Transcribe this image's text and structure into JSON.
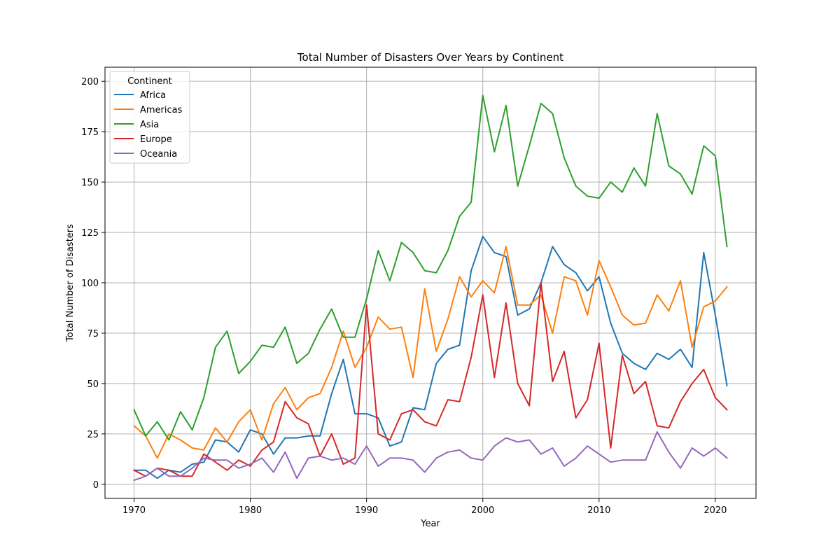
{
  "chart_data": {
    "type": "line",
    "title": "Total Number of Disasters Over Years by Continent",
    "xlabel": "Year",
    "ylabel": "Total Number of Disasters",
    "xlim": [
      1967.5,
      2023.5
    ],
    "ylim": [
      -7,
      207
    ],
    "xticks": [
      1970,
      1980,
      1990,
      2000,
      2010,
      2020
    ],
    "yticks": [
      0,
      25,
      50,
      75,
      100,
      125,
      150,
      175,
      200
    ],
    "grid": true,
    "legend": {
      "title": "Continent",
      "placement": "top-left"
    },
    "colors": {
      "Africa": "#1f77b4",
      "Americas": "#ff7f0e",
      "Asia": "#2ca02c",
      "Europe": "#d62728",
      "Oceania": "#9467bd"
    },
    "x": [
      1970,
      1971,
      1972,
      1973,
      1974,
      1975,
      1976,
      1977,
      1978,
      1979,
      1980,
      1981,
      1982,
      1983,
      1984,
      1985,
      1986,
      1987,
      1988,
      1989,
      1990,
      1991,
      1992,
      1993,
      1994,
      1995,
      1996,
      1997,
      1998,
      1999,
      2000,
      2001,
      2002,
      2003,
      2004,
      2005,
      2006,
      2007,
      2008,
      2009,
      2010,
      2011,
      2012,
      2013,
      2014,
      2015,
      2016,
      2017,
      2018,
      2019,
      2020,
      2021
    ],
    "series": [
      {
        "name": "Africa",
        "values": [
          7,
          7,
          3,
          7,
          6,
          10,
          11,
          22,
          21,
          16,
          27,
          25,
          15,
          23,
          23,
          24,
          24,
          45,
          62,
          35,
          35,
          33,
          19,
          21,
          38,
          37,
          60,
          67,
          69,
          106,
          123,
          115,
          113,
          84,
          87,
          100,
          118,
          109,
          105,
          96,
          103,
          80,
          65,
          60,
          57,
          65,
          62,
          67,
          58,
          115,
          84,
          49
        ]
      },
      {
        "name": "Americas",
        "values": [
          29,
          24,
          13,
          25,
          22,
          18,
          17,
          28,
          21,
          31,
          37,
          22,
          40,
          48,
          37,
          43,
          45,
          58,
          76,
          58,
          68,
          83,
          77,
          78,
          53,
          97,
          66,
          82,
          103,
          93,
          101,
          95,
          118,
          89,
          89,
          94,
          75,
          103,
          101,
          84,
          111,
          98,
          84,
          79,
          80,
          94,
          86,
          101,
          68,
          88,
          91,
          98
        ]
      },
      {
        "name": "Asia",
        "values": [
          37,
          24,
          31,
          22,
          36,
          27,
          43,
          68,
          76,
          55,
          61,
          69,
          68,
          78,
          60,
          65,
          77,
          87,
          73,
          73,
          92,
          116,
          101,
          120,
          115,
          106,
          105,
          116,
          133,
          140,
          193,
          165,
          188,
          148,
          168,
          189,
          184,
          162,
          148,
          143,
          142,
          150,
          145,
          157,
          148,
          184,
          158,
          154,
          144,
          168,
          163,
          118
        ]
      },
      {
        "name": "Europe",
        "values": [
          7,
          4,
          8,
          7,
          4,
          4,
          15,
          11,
          7,
          12,
          9,
          17,
          21,
          41,
          33,
          30,
          14,
          25,
          10,
          13,
          89,
          25,
          22,
          35,
          37,
          31,
          29,
          42,
          41,
          63,
          94,
          53,
          90,
          50,
          39,
          100,
          51,
          66,
          33,
          42,
          70,
          18,
          64,
          45,
          51,
          29,
          28,
          41,
          50,
          57,
          43,
          37
        ]
      },
      {
        "name": "Oceania",
        "values": [
          2,
          4,
          8,
          4,
          4,
          8,
          13,
          12,
          12,
          8,
          10,
          13,
          6,
          16,
          3,
          13,
          14,
          12,
          13,
          10,
          19,
          9,
          13,
          13,
          12,
          6,
          13,
          16,
          17,
          13,
          12,
          19,
          23,
          21,
          22,
          15,
          18,
          9,
          13,
          19,
          15,
          11,
          12,
          12,
          12,
          26,
          16,
          8,
          18,
          14,
          18,
          13
        ]
      }
    ]
  }
}
